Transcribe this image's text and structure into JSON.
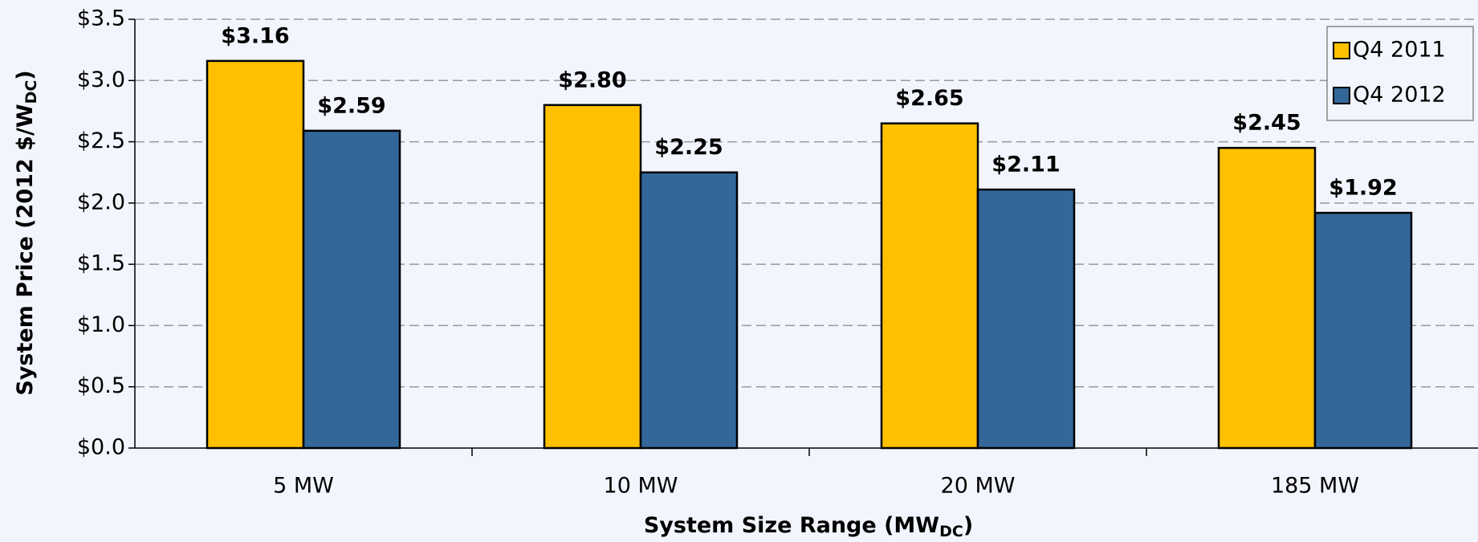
{
  "chart_data": {
    "type": "bar",
    "categories": [
      "5 MW",
      "10 MW",
      "20 MW",
      "185 MW"
    ],
    "series": [
      {
        "name": "Q4 2011",
        "color": "#ffc000",
        "values": [
          3.16,
          2.8,
          2.65,
          2.45
        ],
        "value_labels": [
          "$3.16",
          "$2.80",
          "$2.65",
          "$2.45"
        ]
      },
      {
        "name": "Q4 2012",
        "color": "#336699",
        "values": [
          2.59,
          2.25,
          2.11,
          1.92
        ],
        "value_labels": [
          "$2.59",
          "$2.25",
          "$2.11",
          "$1.92"
        ]
      }
    ],
    "ylim": [
      0,
      3.5
    ],
    "yticks": [
      {
        "value": 0,
        "label": "$0.0"
      },
      {
        "value": 0.5,
        "label": "$0.5"
      },
      {
        "value": 1.0,
        "label": "$1.0"
      },
      {
        "value": 1.5,
        "label": "$1.5"
      },
      {
        "value": 2.0,
        "label": "$2.0"
      },
      {
        "value": 2.5,
        "label": "$2.5"
      },
      {
        "value": 3.0,
        "label": "$3.0"
      },
      {
        "value": 3.5,
        "label": "$3.5"
      }
    ],
    "ylabel": {
      "main": "System Price (2012 $/W",
      "sub": "DC",
      "tail": ")"
    },
    "xlabel": {
      "main": "System Size Range (MW",
      "sub": "DC",
      "tail": ")"
    },
    "grid": true,
    "legend": "top-right"
  }
}
